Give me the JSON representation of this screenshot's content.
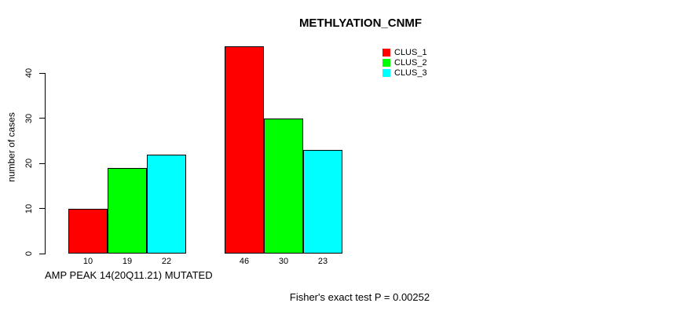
{
  "chart_data": {
    "type": "bar",
    "title": "METHLYATION_CNMF",
    "xlabel": "AMP PEAK 14(20Q11.21) MUTATED",
    "ylabel": "number of cases",
    "yticks": [
      0,
      10,
      20,
      30,
      40
    ],
    "ylim": [
      0,
      46
    ],
    "grid": false,
    "legend_position": "top-right",
    "group_count": 2,
    "series": [
      {
        "name": "CLUS_1",
        "color": "#ff0000",
        "values": [
          10,
          46
        ]
      },
      {
        "name": "CLUS_2",
        "color": "#00ff00",
        "values": [
          19,
          30
        ]
      },
      {
        "name": "CLUS_3",
        "color": "#00ffff",
        "values": [
          22,
          23
        ]
      }
    ],
    "bar_value_labels_group1": [
      10,
      19,
      22
    ],
    "bar_value_labels_group2": [
      46,
      30,
      23
    ],
    "annotation": "Fisher's exact test P = 0.00252"
  }
}
